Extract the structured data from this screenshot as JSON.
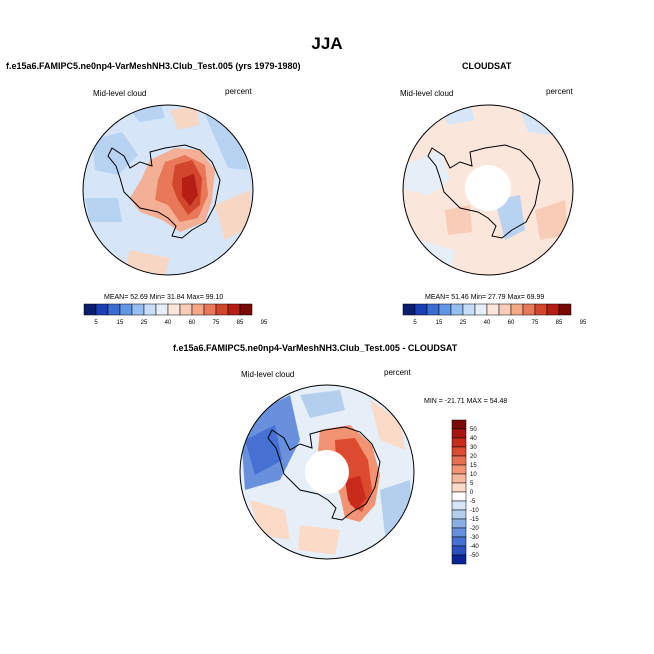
{
  "main_title": "JJA",
  "panels": {
    "model": {
      "title": "f.e15a6.FAMIPC5.ne0np4-VarMeshNH3.Club_Test.005 (yrs 1979-1980)",
      "variable": "Mid-level cloud",
      "units": "percent",
      "stats_text": "MEAN=  52.69  Min=  31.84  Max=  99.10"
    },
    "obs": {
      "title": "CLOUDSAT",
      "variable": "Mid-level cloud",
      "units": "percent",
      "stats_text": "MEAN=  51.46  Min=  27.79  Max=  69.99"
    },
    "diff": {
      "title": "f.e15a6.FAMIPC5.ne0np4-VarMeshNH3.Club_Test.005 - CLOUDSAT",
      "variable": "Mid-level cloud",
      "units": "percent",
      "stats_text": "MIN = -21.71  MAX =  54.48"
    }
  },
  "chart_data": [
    {
      "type": "heatmap",
      "subtype": "polar-stereographic map (South Pole)",
      "title": "f.e15a6.FAMIPC5.ne0np4-VarMeshNH3.Club_Test.005 (yrs 1979-1980)",
      "variable": "Mid-level cloud",
      "units": "percent",
      "season": "JJA",
      "mean": 52.69,
      "min": 31.84,
      "max": 99.1,
      "colorbar": {
        "orientation": "horizontal",
        "tick_labels": [
          "5",
          "15",
          "25",
          "40",
          "60",
          "75",
          "85",
          "95"
        ],
        "colors": [
          "#0a1e6e",
          "#1a3eb4",
          "#3c6ed2",
          "#6496e6",
          "#96bef0",
          "#c8def8",
          "#e6eef8",
          "#fbe6dc",
          "#f8ccb6",
          "#f4a888",
          "#e8785a",
          "#d2462d",
          "#b41e14",
          "#7a0a08"
        ]
      }
    },
    {
      "type": "heatmap",
      "subtype": "polar-stereographic map (South Pole)",
      "title": "CLOUDSAT",
      "variable": "Mid-level cloud",
      "units": "percent",
      "season": "JJA",
      "mean": 51.46,
      "min": 27.79,
      "max": 69.99,
      "colorbar": {
        "orientation": "horizontal",
        "tick_labels": [
          "5",
          "15",
          "25",
          "40",
          "60",
          "75",
          "85",
          "95"
        ],
        "colors": [
          "#0a1e6e",
          "#1a3eb4",
          "#3c6ed2",
          "#6496e6",
          "#96bef0",
          "#c8def8",
          "#e6eef8",
          "#fbe6dc",
          "#f8ccb6",
          "#f4a888",
          "#e8785a",
          "#d2462d",
          "#b41e14",
          "#7a0a08"
        ]
      }
    },
    {
      "type": "heatmap",
      "subtype": "polar-stereographic map (South Pole), difference",
      "title": "f.e15a6.FAMIPC5.ne0np4-VarMeshNH3.Club_Test.005 - CLOUDSAT",
      "variable": "Mid-level cloud",
      "units": "percent",
      "season": "JJA",
      "min": -21.71,
      "max": 54.48,
      "colorbar": {
        "orientation": "vertical",
        "tick_labels": [
          "50",
          "40",
          "30",
          "20",
          "15",
          "10",
          "5",
          "0",
          "-5",
          "-10",
          "-15",
          "-20",
          "-30",
          "-40",
          "-50"
        ],
        "colors": [
          "#7a0a08",
          "#a81410",
          "#c82a1c",
          "#dc4a30",
          "#e87050",
          "#f29474",
          "#f8b89c",
          "#fcdac8",
          "#ffffff",
          "#d6e6f8",
          "#b4ceee",
          "#8cb0e6",
          "#6890dc",
          "#4670d2",
          "#2a50c0",
          "#0a2596"
        ]
      }
    }
  ],
  "colors": {
    "land_outline": "#000000",
    "map_background": "#ffffff"
  }
}
